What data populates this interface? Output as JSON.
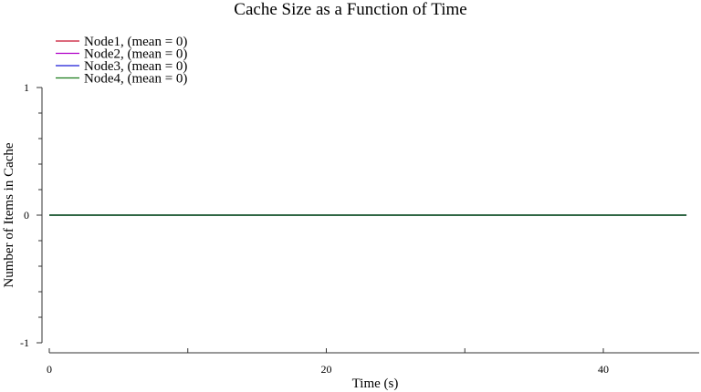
{
  "chart_data": {
    "type": "line",
    "title": "Cache Size as a Function of Time",
    "xlabel": "Time (s)",
    "ylabel": "Number of Items in Cache",
    "xlim": [
      0,
      46
    ],
    "ylim": [
      -1,
      1
    ],
    "x_ticks": [
      0,
      10,
      20,
      30,
      40
    ],
    "x_tick_labels": [
      "0",
      "",
      "20",
      "",
      "40"
    ],
    "y_ticks": [
      -1,
      -0.8,
      -0.6,
      -0.4,
      -0.2,
      0,
      0.2,
      0.4,
      0.6,
      0.8,
      1
    ],
    "y_tick_labels": [
      "-1",
      "",
      "",
      "",
      "",
      "0",
      "",
      "",
      "",
      "",
      "1"
    ],
    "legend_position": "top-left",
    "grid": false,
    "x": [
      0,
      46
    ],
    "series": [
      {
        "name": "Node1, (mean = 0)",
        "color": "#c8102e",
        "values": [
          0,
          0
        ]
      },
      {
        "name": "Node2, (mean = 0)",
        "color": "#b000c8",
        "values": [
          0,
          0
        ]
      },
      {
        "name": "Node3, (mean = 0)",
        "color": "#1a1ad8",
        "values": [
          0,
          0
        ]
      },
      {
        "name": "Node4, (mean = 0)",
        "color": "#1a7a1a",
        "values": [
          0,
          0
        ]
      }
    ]
  }
}
